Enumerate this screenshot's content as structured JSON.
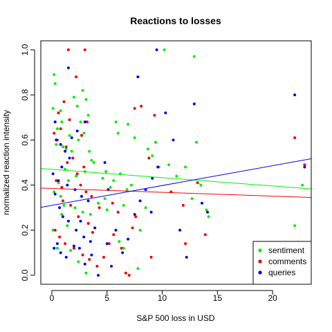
{
  "chart_data": {
    "type": "scatter",
    "title": "Reactions to losses",
    "xlabel": "S&P 500 loss in USD",
    "ylabel": "normalized reaction intensity",
    "xlim": [
      -1,
      23.5
    ],
    "ylim": [
      -0.04,
      1.04
    ],
    "x_ticks": [
      0,
      5,
      10,
      15,
      20
    ],
    "y_ticks": [
      0.0,
      0.2,
      0.4,
      0.6,
      0.8,
      1.0
    ],
    "y_tick_labels": [
      "0.0",
      "0.2",
      "0.4",
      "0.6",
      "0.8",
      "1.0"
    ],
    "grid": false,
    "legend_position": "bottom-right",
    "series": [
      {
        "name": "sentiment",
        "color": "#00ee00",
        "trend": {
          "intercept": 0.47,
          "slope": -0.0037
        },
        "points": [
          [
            0.2,
            0.89
          ],
          [
            0.3,
            0.85
          ],
          [
            0.1,
            0.74
          ],
          [
            0.5,
            0.65
          ],
          [
            0.8,
            0.73
          ],
          [
            1.0,
            0.57
          ],
          [
            0.9,
            0.68
          ],
          [
            1.3,
            0.56
          ],
          [
            1.6,
            0.62
          ],
          [
            1.8,
            0.55
          ],
          [
            0.4,
            0.58
          ],
          [
            2.0,
            0.79
          ],
          [
            2.3,
            0.75
          ],
          [
            2.8,
            0.82
          ],
          [
            3.1,
            0.78
          ],
          [
            3.3,
            0.71
          ],
          [
            2.6,
            0.68
          ],
          [
            2.4,
            0.6
          ],
          [
            2.9,
            0.63
          ],
          [
            3.4,
            0.55
          ],
          [
            3.6,
            0.51
          ],
          [
            3.8,
            0.5
          ],
          [
            3.0,
            0.46
          ],
          [
            2.2,
            0.44
          ],
          [
            1.5,
            0.42
          ],
          [
            1.2,
            0.47
          ],
          [
            0.6,
            0.41
          ],
          [
            0.2,
            0.37
          ],
          [
            0.8,
            0.35
          ],
          [
            1.1,
            0.31
          ],
          [
            2.1,
            0.3
          ],
          [
            2.8,
            0.28
          ],
          [
            3.5,
            0.27
          ],
          [
            4.2,
            0.32
          ],
          [
            4.8,
            0.34
          ],
          [
            5.0,
            0.29
          ],
          [
            5.3,
            0.39
          ],
          [
            5.6,
            0.42
          ],
          [
            4.9,
            0.46
          ],
          [
            4.6,
            0.43
          ],
          [
            6.2,
            0.45
          ],
          [
            6.8,
            0.38
          ],
          [
            7.2,
            0.4
          ],
          [
            6.5,
            0.31
          ],
          [
            5.8,
            0.68
          ],
          [
            6.0,
            0.63
          ],
          [
            6.9,
            0.67
          ],
          [
            7.5,
            0.61
          ],
          [
            8.7,
            0.56
          ],
          [
            9.1,
            0.53
          ],
          [
            9.4,
            0.59
          ],
          [
            9.7,
            0.48
          ],
          [
            10.6,
            0.49
          ],
          [
            10.2,
            1.0
          ],
          [
            12.9,
            0.97
          ],
          [
            11.3,
            0.44
          ],
          [
            12.1,
            0.48
          ],
          [
            12.7,
            0.34
          ],
          [
            13.1,
            0.59
          ],
          [
            13.5,
            0.4
          ],
          [
            14.0,
            0.29
          ],
          [
            14.2,
            0.26
          ],
          [
            8.0,
            0.2
          ],
          [
            8.5,
            0.3
          ],
          [
            3.1,
            0.01
          ],
          [
            2.4,
            0.06
          ],
          [
            1.7,
            0.11
          ],
          [
            0.5,
            0.12
          ],
          [
            0.1,
            0.2
          ],
          [
            0.9,
            0.27
          ],
          [
            1.4,
            0.22
          ],
          [
            6.1,
            0.15
          ],
          [
            6.5,
            0.12
          ],
          [
            7.8,
            0.03
          ],
          [
            22.0,
            0.22
          ],
          [
            22.7,
            0.4
          ]
        ]
      },
      {
        "name": "comments",
        "color": "#ee0000",
        "trend": {
          "intercept": 0.385,
          "slope": -0.0017
        },
        "points": [
          [
            1.5,
            1.0
          ],
          [
            3.0,
            1.0
          ],
          [
            2.2,
            0.88
          ],
          [
            0.6,
            0.72
          ],
          [
            1.1,
            0.77
          ],
          [
            1.6,
            0.69
          ],
          [
            0.8,
            0.65
          ],
          [
            0.2,
            0.63
          ],
          [
            0.5,
            0.6
          ],
          [
            1.3,
            0.57
          ],
          [
            1.9,
            0.52
          ],
          [
            2.3,
            0.45
          ],
          [
            2.6,
            0.4
          ],
          [
            3.1,
            0.37
          ],
          [
            3.6,
            0.35
          ],
          [
            0.4,
            0.42
          ],
          [
            0.9,
            0.39
          ],
          [
            1.0,
            0.33
          ],
          [
            1.7,
            0.31
          ],
          [
            2.4,
            0.26
          ],
          [
            3.3,
            0.23
          ],
          [
            0.3,
            0.2
          ],
          [
            0.7,
            0.17
          ],
          [
            1.2,
            0.14
          ],
          [
            2.0,
            0.12
          ],
          [
            2.8,
            0.09
          ],
          [
            3.4,
            0.07
          ],
          [
            4.1,
            0.04
          ],
          [
            4.7,
            0.08
          ],
          [
            5.2,
            0.14
          ],
          [
            5.6,
            0.18
          ],
          [
            6.3,
            0.12
          ],
          [
            6.7,
            0.01
          ],
          [
            7.0,
            0.0
          ],
          [
            6.0,
            0.28
          ],
          [
            5.5,
            0.32
          ],
          [
            7.3,
            0.21
          ],
          [
            7.6,
            0.26
          ],
          [
            8.1,
            0.75
          ],
          [
            7.5,
            0.74
          ],
          [
            8.8,
            0.52
          ],
          [
            9.3,
            0.71
          ],
          [
            9.0,
            0.08
          ],
          [
            10.8,
            0.37
          ],
          [
            11.9,
            0.31
          ],
          [
            12.1,
            0.14
          ],
          [
            13.2,
            0.41
          ],
          [
            13.9,
            0.18
          ],
          [
            3.7,
            0.19
          ],
          [
            4.3,
            0.3
          ],
          [
            2.9,
            0.48
          ],
          [
            1.4,
            0.5
          ],
          [
            3.2,
            0.68
          ],
          [
            2.7,
            0.62
          ],
          [
            22.0,
            0.61
          ],
          [
            22.9,
            0.49
          ]
        ]
      },
      {
        "name": "queries",
        "color": "#0000ee",
        "trend": {
          "intercept": 0.31,
          "slope": 0.0088
        },
        "points": [
          [
            1.5,
            0.92
          ],
          [
            9.5,
            1.0
          ],
          [
            7.8,
            0.88
          ],
          [
            0.4,
            0.6
          ],
          [
            0.8,
            0.58
          ],
          [
            1.2,
            0.55
          ],
          [
            1.6,
            0.52
          ],
          [
            0.9,
            0.48
          ],
          [
            0.1,
            0.45
          ],
          [
            0.6,
            0.42
          ],
          [
            1.4,
            0.4
          ],
          [
            2.1,
            0.38
          ],
          [
            2.7,
            0.35
          ],
          [
            3.3,
            0.33
          ],
          [
            0.3,
            0.36
          ],
          [
            0.7,
            0.3
          ],
          [
            1.0,
            0.26
          ],
          [
            1.5,
            0.24
          ],
          [
            2.2,
            0.2
          ],
          [
            2.9,
            0.17
          ],
          [
            3.5,
            0.15
          ],
          [
            0.2,
            0.12
          ],
          [
            0.8,
            0.1
          ],
          [
            1.3,
            0.08
          ],
          [
            2.0,
            0.13
          ],
          [
            2.5,
            0.12
          ],
          [
            3.0,
            0.05
          ],
          [
            3.6,
            0.09
          ],
          [
            4.2,
            0.0
          ],
          [
            5.0,
            0.14
          ],
          [
            5.4,
            0.04
          ],
          [
            5.8,
            0.2
          ],
          [
            6.4,
            0.1
          ],
          [
            6.9,
            0.16
          ],
          [
            7.5,
            0.27
          ],
          [
            8.0,
            0.33
          ],
          [
            8.5,
            0.38
          ],
          [
            9.0,
            0.28
          ],
          [
            9.6,
            0.48
          ],
          [
            9.1,
            0.43
          ],
          [
            10.3,
            0.72
          ],
          [
            11.0,
            0.6
          ],
          [
            11.6,
            0.2
          ],
          [
            12.2,
            0.08
          ],
          [
            12.9,
            0.76
          ],
          [
            13.6,
            0.32
          ],
          [
            14.1,
            0.28
          ],
          [
            3.0,
            0.68
          ],
          [
            2.3,
            0.64
          ],
          [
            1.8,
            0.61
          ],
          [
            0.3,
            0.68
          ],
          [
            4.8,
            0.5
          ],
          [
            5.1,
            0.38
          ],
          [
            0.5,
            0.14
          ],
          [
            2.6,
            0.24
          ],
          [
            3.9,
            0.21
          ],
          [
            22.0,
            0.8
          ],
          [
            22.9,
            0.48
          ]
        ]
      }
    ]
  }
}
